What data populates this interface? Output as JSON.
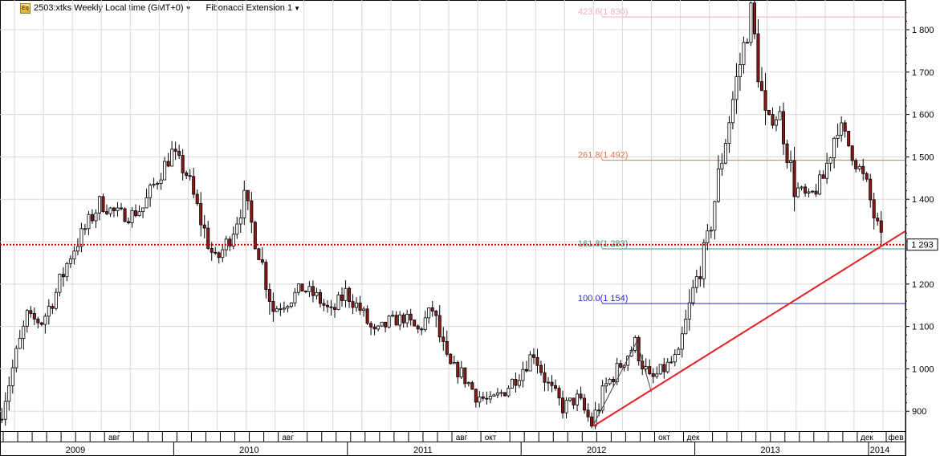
{
  "header": {
    "symbol_title": "2503:xtks Weekly Local time (GMT+0)",
    "indicator_title": "Fibonacci Extension 1"
  },
  "colors": {
    "up_candle": "#ffffff",
    "down_candle": "#8b1a1a",
    "candle_outline": "#000000",
    "trendline": "#e02020",
    "price_line": "#c00000",
    "grid": "#d8d8d8"
  },
  "icons": {
    "title_icon": "eq-icon",
    "dropdown": "caret-down-icon"
  },
  "chart_data": {
    "type": "candlestick",
    "price_axis": {
      "ylim": [
        855,
        1870
      ],
      "ticks": [
        "900",
        "1 000",
        "1 100",
        "1 200",
        "1 300",
        "1 400",
        "1 500",
        "1 600",
        "1 700",
        "1 800"
      ],
      "tick_values": [
        900,
        1000,
        1100,
        1200,
        1300,
        1400,
        1500,
        1600,
        1700,
        1800
      ]
    },
    "current_price": {
      "label": "1 293",
      "value": 1293
    },
    "fib_levels": [
      {
        "label": "423.6(1 830)",
        "value": 1830,
        "color": "#f0b0b8"
      },
      {
        "label": "261.8(1 492)",
        "value": 1492,
        "color": "#e07a4a"
      },
      {
        "label": "161.8(1 283)",
        "value": 1283,
        "color": "#3c9b8e"
      },
      {
        "label": "100.0(1 154)",
        "value": 1154,
        "color": "#2a2ac8"
      }
    ],
    "trendline": {
      "from": [
        "2012-06",
        865
      ],
      "to": [
        "2014-02",
        1325
      ]
    },
    "fib_anchor_points": [
      [
        "2012-06",
        868
      ],
      [
        "2012-09",
        1065
      ],
      [
        "2012-10",
        945
      ]
    ],
    "time_axis": {
      "month_labels": [
        {
          "label": "авг",
          "date": "2009-08"
        },
        {
          "label": "авг",
          "date": "2010-08"
        },
        {
          "label": "авг",
          "date": "2011-08"
        },
        {
          "label": "окт",
          "date": "2011-10"
        },
        {
          "label": "окт",
          "date": "2012-10"
        },
        {
          "label": "дек",
          "date": "2012-12"
        },
        {
          "label": "дек",
          "date": "2013-12"
        },
        {
          "label": "фев",
          "date": "2014-02"
        }
      ],
      "year_labels": [
        "2009",
        "2010",
        "2011",
        "2012",
        "2013",
        "2014"
      ]
    },
    "price_path": [
      [
        "2009-01",
        880
      ],
      [
        "2009-02",
        1000
      ],
      [
        "2009-03",
        1120
      ],
      [
        "2009-04",
        1110
      ],
      [
        "2009-05",
        1180
      ],
      [
        "2009-06",
        1270
      ],
      [
        "2009-07",
        1330
      ],
      [
        "2009-08",
        1390
      ],
      [
        "2009-09",
        1370
      ],
      [
        "2009-10",
        1360
      ],
      [
        "2009-11",
        1380
      ],
      [
        "2009-12",
        1450
      ],
      [
        "2010-01",
        1510
      ],
      [
        "2010-02",
        1460
      ],
      [
        "2010-03",
        1350
      ],
      [
        "2010-04",
        1250
      ],
      [
        "2010-05",
        1310
      ],
      [
        "2010-06",
        1400
      ],
      [
        "2010-07",
        1280
      ],
      [
        "2010-08",
        1140
      ],
      [
        "2010-09",
        1160
      ],
      [
        "2010-10",
        1190
      ],
      [
        "2010-11",
        1170
      ],
      [
        "2010-12",
        1130
      ],
      [
        "2011-01",
        1180
      ],
      [
        "2011-02",
        1140
      ],
      [
        "2011-03",
        1080
      ],
      [
        "2011-04",
        1110
      ],
      [
        "2011-05",
        1120
      ],
      [
        "2011-06",
        1090
      ],
      [
        "2011-07",
        1140
      ],
      [
        "2011-08",
        1010
      ],
      [
        "2011-09",
        990
      ],
      [
        "2011-10",
        940
      ],
      [
        "2011-11",
        920
      ],
      [
        "2011-12",
        950
      ],
      [
        "2012-01",
        990
      ],
      [
        "2012-02",
        1040
      ],
      [
        "2012-03",
        960
      ],
      [
        "2012-04",
        910
      ],
      [
        "2012-05",
        930
      ],
      [
        "2012-06",
        870
      ],
      [
        "2012-07",
        960
      ],
      [
        "2012-08",
        1010
      ],
      [
        "2012-09",
        1060
      ],
      [
        "2012-10",
        970
      ],
      [
        "2012-11",
        1000
      ],
      [
        "2012-12",
        1030
      ],
      [
        "2013-01",
        1180
      ],
      [
        "2013-02",
        1300
      ],
      [
        "2013-03",
        1500
      ],
      [
        "2013-04",
        1680
      ],
      [
        "2013-05",
        1840
      ],
      [
        "2013-06",
        1580
      ],
      [
        "2013-07",
        1600
      ],
      [
        "2013-08",
        1430
      ],
      [
        "2013-09",
        1400
      ],
      [
        "2013-10",
        1450
      ],
      [
        "2013-11",
        1580
      ],
      [
        "2013-12",
        1510
      ],
      [
        "2014-01",
        1430
      ],
      [
        "2014-02",
        1293
      ]
    ]
  }
}
